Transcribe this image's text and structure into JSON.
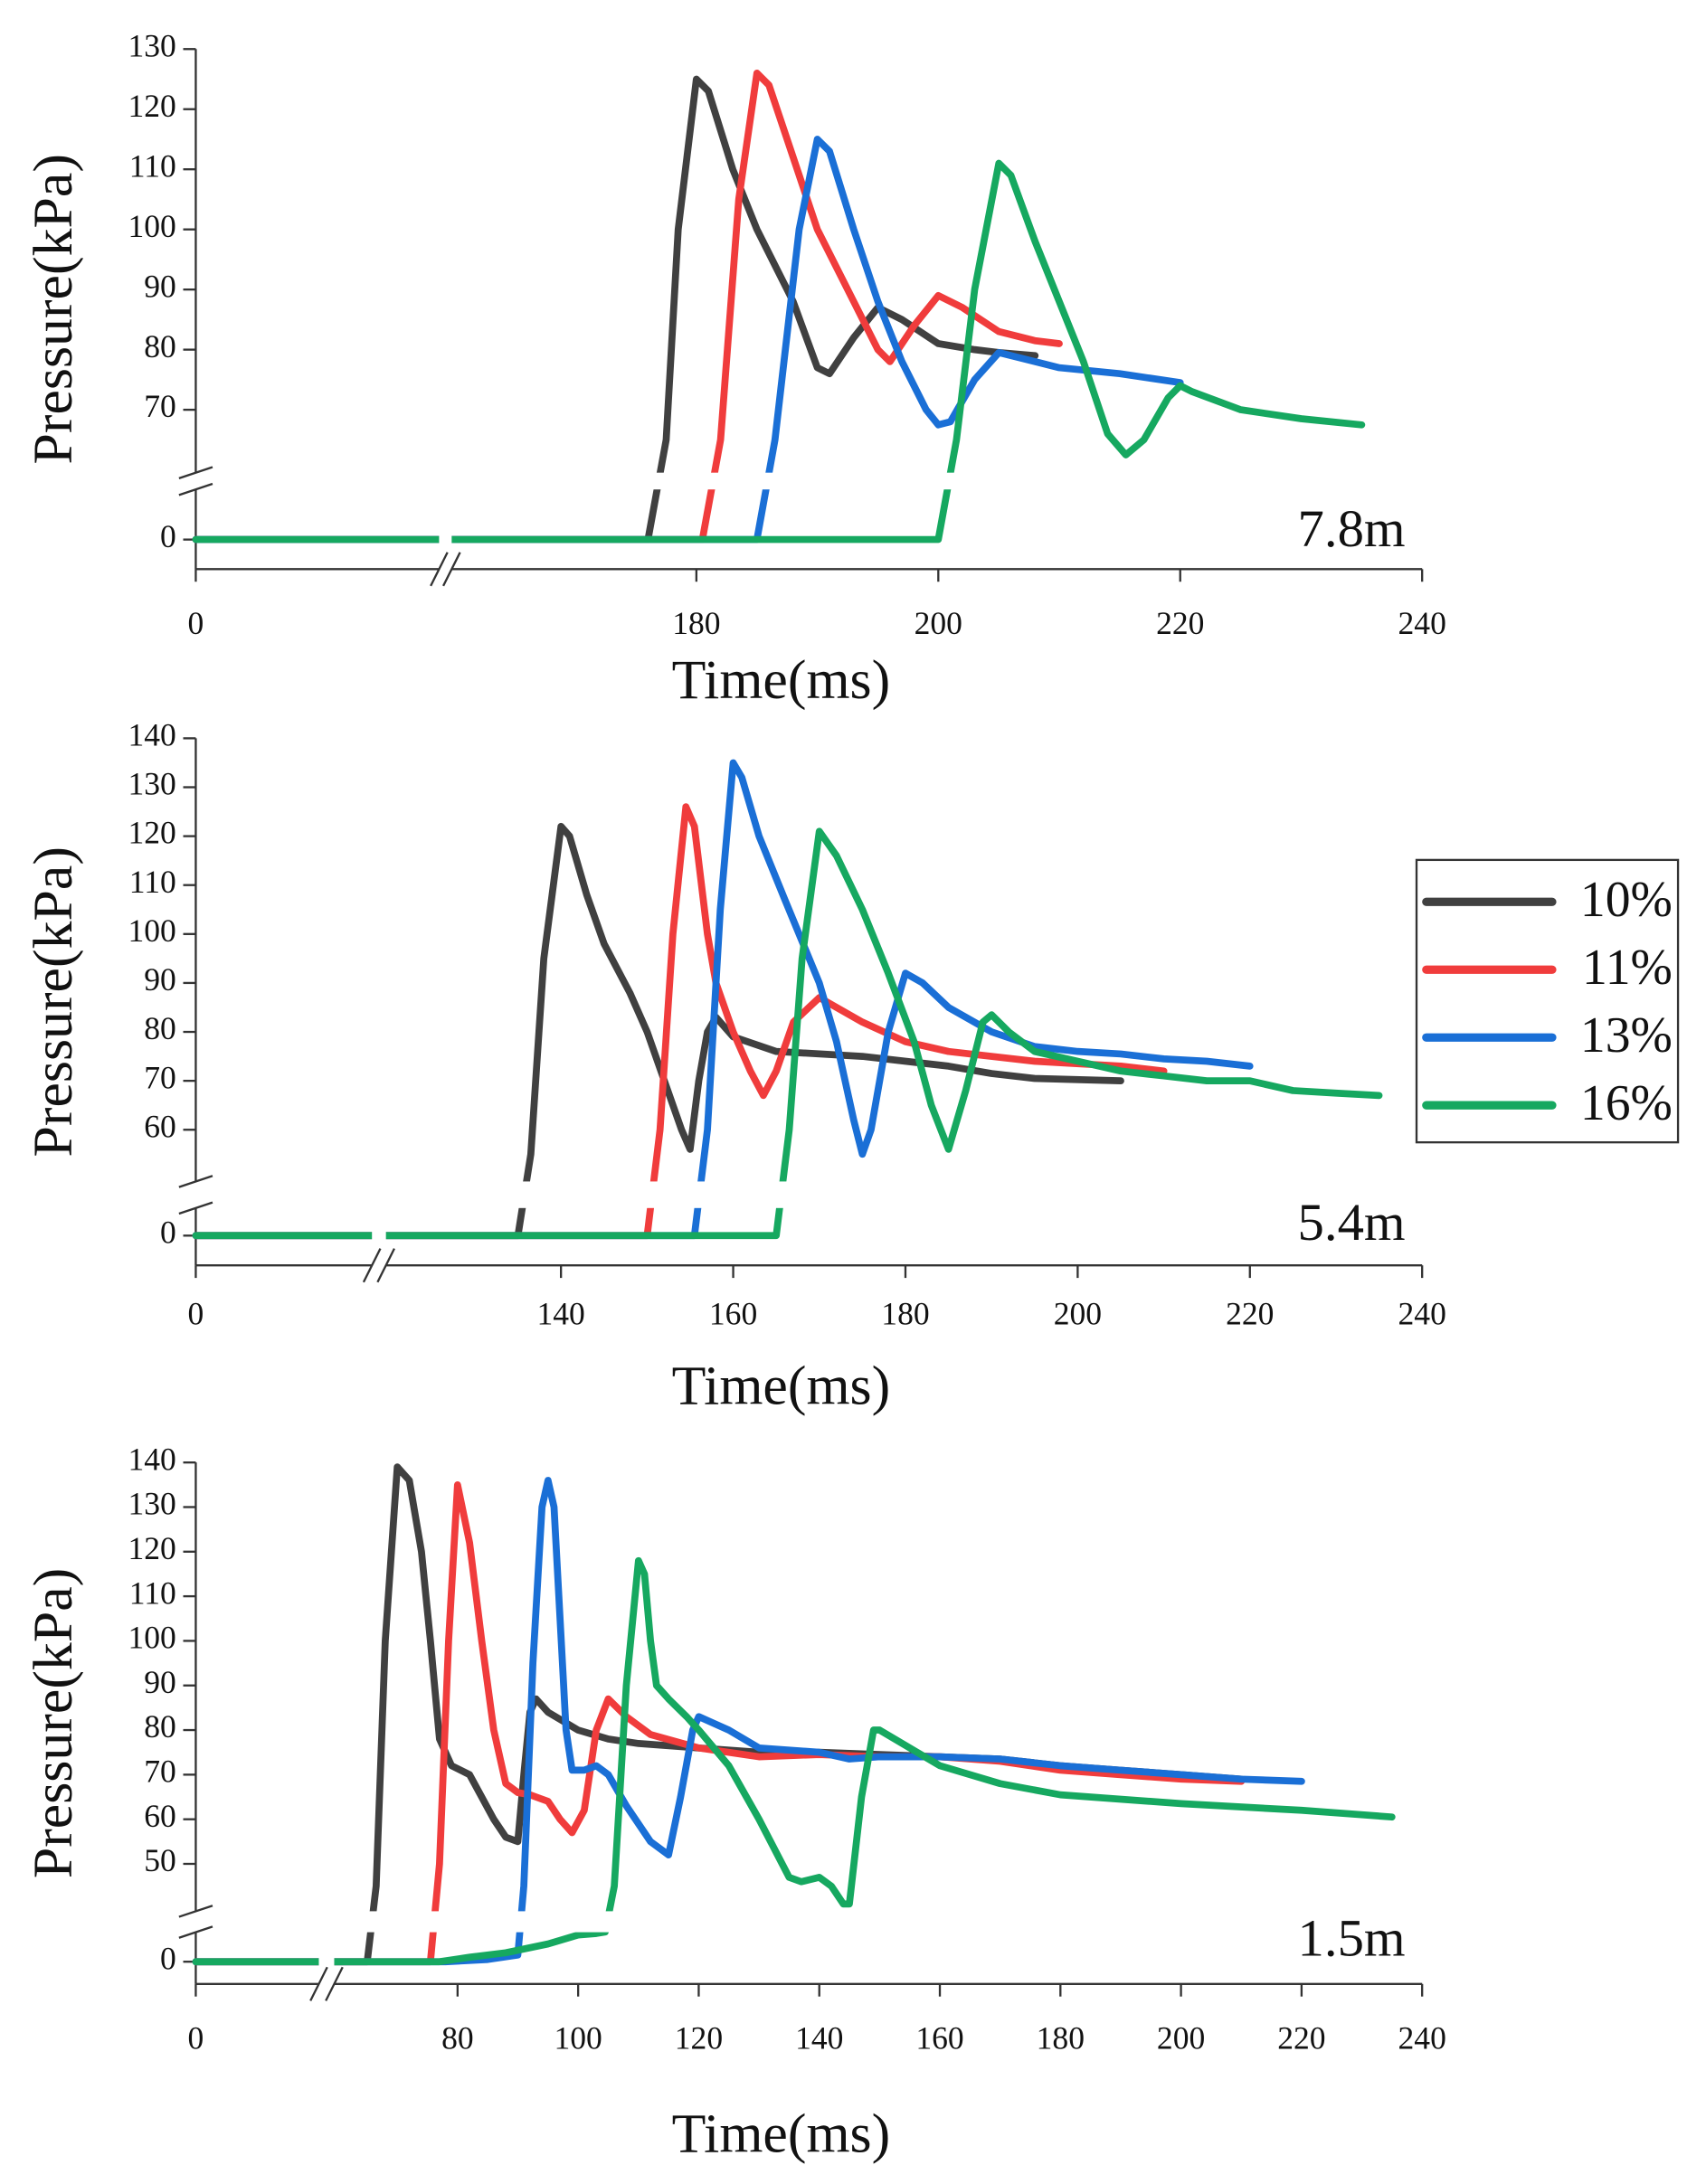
{
  "chart_data": [
    {
      "type": "line",
      "annotation": "7.8m",
      "xlabel": "Time(ms)",
      "ylabel": "Pressure(kPa)",
      "xlim_segments": [
        [
          0,
          20
        ],
        [
          160,
          240
        ]
      ],
      "ylim_segments": [
        [
          -5,
          8
        ],
        [
          60,
          130
        ]
      ],
      "xticks": [
        0,
        180,
        200,
        220,
        240
      ],
      "yticks": [
        0,
        70,
        80,
        90,
        100,
        110,
        120,
        130
      ],
      "series": [
        {
          "name": "10%",
          "color": "#404040",
          "x": [
            0,
            176,
            177.5,
            178.5,
            180,
            181,
            183,
            185,
            188,
            190,
            191,
            193,
            195,
            197,
            200,
            203,
            205,
            208
          ],
          "values": [
            0,
            0,
            65,
            100,
            125,
            123,
            110,
            100,
            88,
            77,
            76,
            82,
            87,
            85,
            81,
            80,
            79.5,
            79
          ]
        },
        {
          "name": "11%",
          "color": "#f03c3c",
          "x": [
            0,
            180.5,
            182,
            183.5,
            185,
            186,
            188,
            190,
            193,
            195,
            196,
            198,
            200,
            202,
            205,
            208,
            210
          ],
          "values": [
            0,
            0,
            65,
            105,
            126,
            124,
            112,
            100,
            88,
            80,
            78,
            84,
            89,
            87,
            83,
            81.5,
            81
          ]
        },
        {
          "name": "13%",
          "color": "#1a6fd6",
          "x": [
            0,
            185,
            186.5,
            188.5,
            190,
            191,
            193,
            195,
            197,
            199,
            200,
            201,
            203,
            205,
            208,
            210,
            215,
            220
          ],
          "values": [
            0,
            0,
            65,
            100,
            115,
            113,
            100,
            88,
            78,
            70,
            67.5,
            68,
            75,
            79.5,
            78,
            77,
            76,
            74.5
          ]
        },
        {
          "name": "16%",
          "color": "#16a860",
          "x": [
            0,
            200,
            201.5,
            203,
            205,
            206,
            208,
            210,
            212,
            214,
            215.5,
            217,
            219,
            220,
            221,
            225,
            230,
            235
          ],
          "values": [
            0,
            0,
            65,
            90,
            111,
            109,
            98,
            88,
            78,
            66,
            62.5,
            65,
            72,
            74,
            73,
            70,
            68.5,
            67.5
          ]
        }
      ]
    },
    {
      "type": "line",
      "annotation": "5.4m",
      "xlabel": "Time(ms)",
      "ylabel": "Pressure(kPa)",
      "xlim_segments": [
        [
          0,
          20
        ],
        [
          120,
          240
        ]
      ],
      "ylim_segments": [
        [
          -6,
          5
        ],
        [
          50,
          140
        ]
      ],
      "xticks": [
        0,
        140,
        160,
        180,
        200,
        220,
        240
      ],
      "yticks": [
        0,
        60,
        70,
        80,
        90,
        100,
        110,
        120,
        130,
        140
      ],
      "series": [
        {
          "name": "10%",
          "color": "#404040",
          "x": [
            0,
            135,
            136.5,
            138,
            140,
            141,
            143,
            145,
            148,
            150,
            152,
            154,
            155,
            156,
            157,
            158,
            160,
            165,
            175,
            185,
            190,
            195,
            205
          ],
          "values": [
            0,
            0,
            55,
            95,
            122,
            120,
            108,
            98,
            88,
            80,
            70,
            60,
            56,
            70,
            80,
            83,
            79,
            76,
            75,
            73,
            71.5,
            70.5,
            70
          ]
        },
        {
          "name": "11%",
          "color": "#f03c3c",
          "x": [
            0,
            150,
            151.5,
            153,
            154.5,
            155.5,
            157,
            158,
            160,
            162,
            163.5,
            165,
            167,
            170,
            175,
            180,
            185,
            195,
            205,
            210
          ],
          "values": [
            0,
            0,
            60,
            100,
            126,
            122,
            100,
            90,
            80,
            72,
            67,
            72,
            82,
            87,
            82,
            78,
            76,
            74,
            73,
            72
          ]
        },
        {
          "name": "13%",
          "color": "#1a6fd6",
          "x": [
            0,
            155.5,
            157,
            158.5,
            160,
            161,
            163,
            166,
            170,
            172,
            174,
            175,
            176,
            178,
            180,
            182,
            185,
            190,
            195,
            200,
            205,
            210,
            215,
            220
          ],
          "values": [
            0,
            0,
            60,
            105,
            135,
            132,
            120,
            107,
            90,
            78,
            62,
            55,
            60,
            80,
            92,
            90,
            85,
            80,
            77,
            76,
            75.5,
            74.5,
            74,
            73
          ]
        },
        {
          "name": "16%",
          "color": "#16a860",
          "x": [
            0,
            165,
            166.5,
            168,
            170,
            172,
            175,
            178,
            181,
            183,
            185,
            187,
            189,
            190,
            192,
            195,
            200,
            205,
            210,
            215,
            220,
            225,
            230,
            235
          ],
          "values": [
            0,
            0,
            60,
            95,
            121,
            116,
            105,
            92,
            78,
            65,
            56,
            68,
            82,
            83.5,
            80,
            76,
            74,
            72,
            71,
            70,
            70,
            68,
            67.5,
            67
          ]
        }
      ]
    },
    {
      "type": "line",
      "annotation": "1.5m",
      "xlabel": "Time(ms)",
      "ylabel": "Pressure(kPa)",
      "xlim_segments": [
        [
          0,
          20
        ],
        [
          60,
          240
        ]
      ],
      "ylim_segments": [
        [
          -5,
          6
        ],
        [
          40,
          140
        ]
      ],
      "xticks": [
        0,
        80,
        100,
        120,
        140,
        160,
        180,
        200,
        220,
        240
      ],
      "yticks": [
        0,
        50,
        60,
        70,
        80,
        90,
        100,
        110,
        120,
        130,
        140
      ],
      "series": [
        {
          "name": "10%",
          "color": "#404040",
          "x": [
            0,
            65,
            66.5,
            68,
            70,
            72,
            74,
            75.5,
            77,
            79,
            82,
            84,
            86,
            88,
            90,
            91,
            92,
            93,
            95,
            100,
            105,
            110,
            120,
            130,
            140,
            150,
            160,
            170,
            180,
            190,
            200,
            210
          ],
          "values": [
            0,
            0,
            45,
            100,
            139,
            136,
            120,
            100,
            78,
            72,
            70,
            65,
            60,
            56,
            55,
            70,
            84,
            87,
            84,
            80,
            78,
            77,
            76,
            75,
            75,
            74.5,
            74,
            73.5,
            72,
            71,
            70,
            69
          ]
        },
        {
          "name": "11%",
          "color": "#f03c3c",
          "x": [
            0,
            75.5,
            77,
            78.5,
            80,
            82,
            84,
            86,
            88,
            90,
            92,
            95,
            97,
            99,
            101,
            103,
            105,
            108,
            112,
            120,
            130,
            140,
            150,
            160,
            170,
            180,
            190,
            200,
            210
          ],
          "values": [
            0,
            0,
            50,
            100,
            135,
            122,
            100,
            80,
            68,
            66,
            65.5,
            64,
            60,
            57,
            62,
            80,
            87,
            83,
            79,
            76,
            74,
            74.5,
            74,
            74,
            73,
            71,
            70,
            69,
            68.5
          ]
        },
        {
          "name": "13%",
          "color": "#1a6fd6",
          "x": [
            0,
            78,
            85,
            90,
            91,
            92.5,
            94,
            95,
            96,
            97,
            98,
            99,
            101,
            103,
            105,
            108,
            112,
            115,
            117,
            119,
            120,
            125,
            130,
            140,
            145,
            150,
            160,
            170,
            180,
            190,
            200,
            210,
            220
          ],
          "values": [
            0,
            0,
            0.5,
            1.5,
            45,
            95,
            130,
            136,
            130,
            105,
            80,
            71,
            71,
            72,
            70,
            63,
            55,
            52,
            65,
            80,
            83,
            80,
            76,
            75,
            73.5,
            74,
            74,
            73.5,
            72,
            71,
            70,
            69,
            68.5
          ]
        },
        {
          "name": "16%",
          "color": "#16a860",
          "x": [
            0,
            77,
            82,
            88,
            95,
            100,
            103,
            104.5,
            106,
            108,
            110,
            111,
            112,
            113,
            115,
            118,
            120,
            125,
            130,
            135,
            137,
            140,
            142,
            144,
            145,
            147,
            149,
            150,
            155,
            160,
            170,
            180,
            200,
            220,
            235
          ],
          "values": [
            0,
            0,
            1,
            2,
            4,
            6,
            8,
            10,
            45,
            90,
            118,
            115,
            100,
            90,
            87,
            83,
            80,
            72,
            60,
            47,
            46,
            47,
            45,
            41,
            41,
            65,
            80,
            80,
            76,
            72,
            68,
            65.5,
            63.5,
            62,
            60.5
          ]
        }
      ]
    }
  ]
}
